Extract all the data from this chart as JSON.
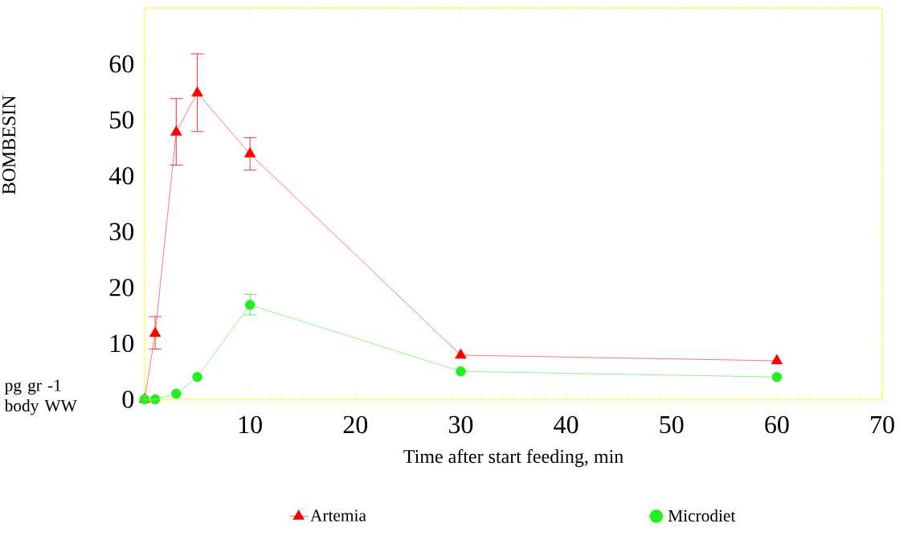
{
  "chart_data": {
    "type": "line",
    "xlabel": "Time after start feeding, min",
    "ylabel": "BOMBESIN",
    "annotations": [
      "pg gr -1 body WW"
    ],
    "xlim": [
      0,
      70
    ],
    "xticks": [
      10,
      20,
      30,
      40,
      50,
      60,
      70
    ],
    "ylim": [
      0,
      70
    ],
    "yticks": [
      0,
      10,
      20,
      30,
      40,
      50,
      60
    ],
    "grid": false,
    "legend": "bottom",
    "line_style": "solid",
    "series": [
      {
        "name": "Artemia",
        "color": "#ff0000",
        "marker": "triangle",
        "x": [
          0,
          1,
          3,
          5,
          10,
          30,
          60
        ],
        "values": [
          0,
          11.8,
          47.8,
          54.8,
          43.9,
          7.9,
          6.9
        ],
        "errors": [
          null,
          [
            9.0,
            14.8
          ],
          [
            41.9,
            53.8
          ],
          [
            47.9,
            61.8
          ],
          [
            41.0,
            46.8
          ],
          null,
          null
        ]
      },
      {
        "name": "Microdiet",
        "color": "#22ee22",
        "marker": "circle",
        "x": [
          0,
          1,
          3,
          5,
          10,
          30,
          60
        ],
        "values": [
          0,
          0,
          1.0,
          4.0,
          16.9,
          5.0,
          4.0
        ],
        "errors": [
          null,
          null,
          null,
          null,
          [
            15.1,
            18.8
          ],
          null,
          null
        ]
      }
    ]
  }
}
